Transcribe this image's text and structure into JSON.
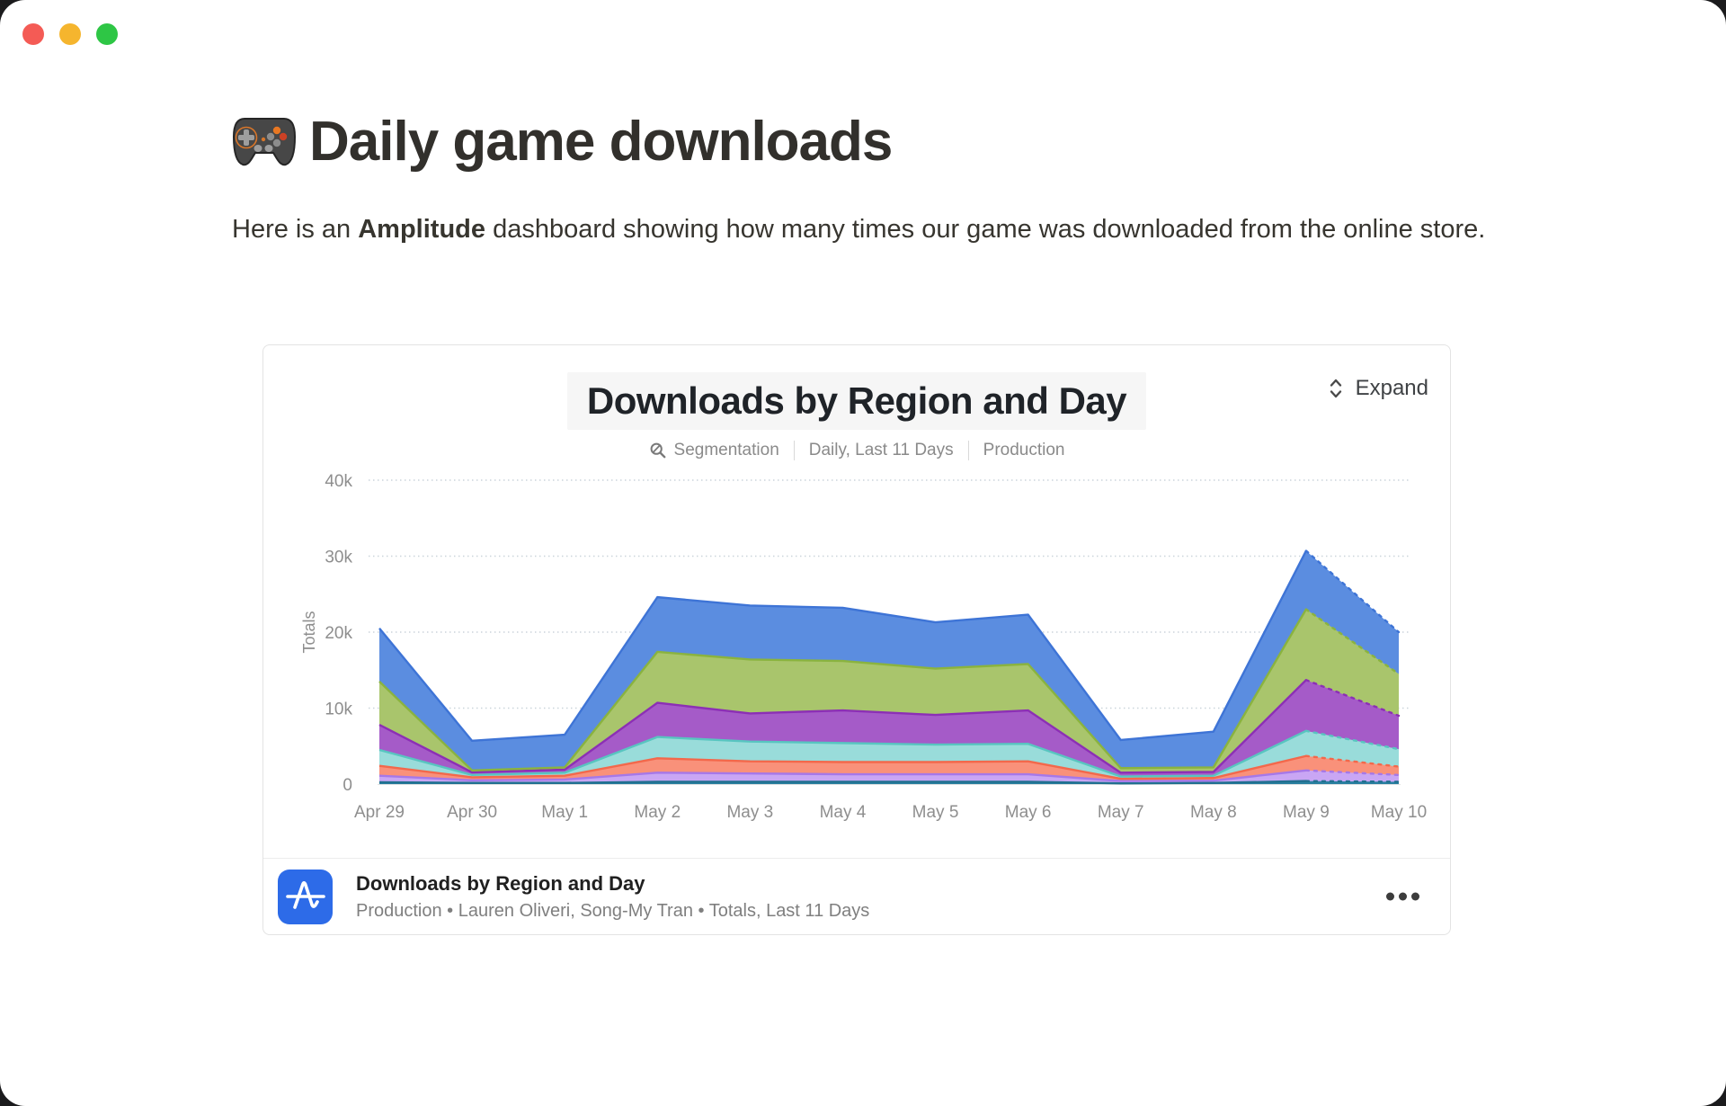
{
  "window": {
    "controls": [
      {
        "name": "close",
        "color": "#f45b55"
      },
      {
        "name": "minimize",
        "color": "#f5b52e"
      },
      {
        "name": "zoom",
        "color": "#2ec645"
      }
    ]
  },
  "page": {
    "title": "Daily game downloads",
    "title_icon": "gamepad-emoji",
    "intro": {
      "prefix": "Here is an ",
      "bold": "Amplitude",
      "suffix": " dashboard showing how many times our game was downloaded from the online store."
    }
  },
  "embed": {
    "chart_header": {
      "title": "Downloads by Region and Day",
      "meta": {
        "icon": "segmentation-icon",
        "items": [
          "Segmentation",
          "Daily, Last 11 Days",
          "Production"
        ]
      },
      "expand_label": "Expand",
      "expand_icon": "expand-chevrons-icon"
    },
    "footer": {
      "logo_icon": "amplitude-logo",
      "logo_color": "#2d6be8",
      "title": "Downloads by Region and Day",
      "subtitle": "Production • Lauren Oliveri, Song-My Tran • Totals, Last 11 Days",
      "menu_icon": "ellipsis-icon"
    }
  },
  "chart_data": {
    "type": "area",
    "stacked": true,
    "title": "Downloads by Region and Day",
    "xlabel": "",
    "ylabel": "Totals",
    "x": [
      "Apr 29",
      "Apr 30",
      "May 1",
      "May 2",
      "May 3",
      "May 4",
      "May 5",
      "May 6",
      "May 7",
      "May 8",
      "May 9",
      "May 10"
    ],
    "ylim": [
      0,
      40000
    ],
    "yticks": [
      {
        "v": 0,
        "label": "0"
      },
      {
        "v": 10000,
        "label": "10k"
      },
      {
        "v": 20000,
        "label": "20k"
      },
      {
        "v": 30000,
        "label": "30k"
      },
      {
        "v": 40000,
        "label": "40k"
      }
    ],
    "grid": "horizontal dotted",
    "legend": "none visible in screenshot",
    "last_segment_style": "dashed stroke (incomplete final period May 9 to May 10)",
    "series_bottom_to_top": [
      {
        "name": "series-7-dark-teal",
        "fill": "#2a80a0",
        "stroke": "#21708f",
        "values": [
          250,
          150,
          150,
          300,
          300,
          300,
          300,
          300,
          100,
          150,
          400,
          300
        ]
      },
      {
        "name": "series-6-lavender",
        "fill": "#c9a6f4",
        "stroke": "#a678e8",
        "values": [
          850,
          350,
          450,
          1200,
          1100,
          1000,
          1000,
          1000,
          300,
          300,
          1400,
          900
        ]
      },
      {
        "name": "series-5-coral",
        "fill": "#f9917a",
        "stroke": "#f3684b",
        "values": [
          1300,
          400,
          500,
          1900,
          1600,
          1600,
          1600,
          1700,
          300,
          350,
          1900,
          1100
        ]
      },
      {
        "name": "series-4-cyan",
        "fill": "#99dcda",
        "stroke": "#58c5c0",
        "values": [
          2100,
          300,
          400,
          2800,
          2600,
          2500,
          2300,
          2300,
          300,
          300,
          3300,
          2300
        ]
      },
      {
        "name": "series-3-purple",
        "fill": "#a55bc8",
        "stroke": "#8c2fb5",
        "values": [
          3300,
          350,
          400,
          4500,
          3700,
          4300,
          3900,
          4400,
          500,
          500,
          6700,
          4400
        ]
      },
      {
        "name": "series-2-green",
        "fill": "#a9c56c",
        "stroke": "#8ab33f",
        "values": [
          5700,
          250,
          300,
          6700,
          7100,
          6500,
          6100,
          6100,
          600,
          600,
          9300,
          5500
        ]
      },
      {
        "name": "series-1-blue",
        "fill": "#5b8de0",
        "stroke": "#3e74d6",
        "values": [
          7000,
          3900,
          4300,
          7200,
          7100,
          7000,
          6100,
          6500,
          3700,
          4700,
          7700,
          5500
        ]
      }
    ],
    "totals_by_day": [
      20500,
      5700,
      6500,
      24600,
      23500,
      23200,
      21300,
      22300,
      5800,
      6900,
      30700,
      20000
    ]
  }
}
